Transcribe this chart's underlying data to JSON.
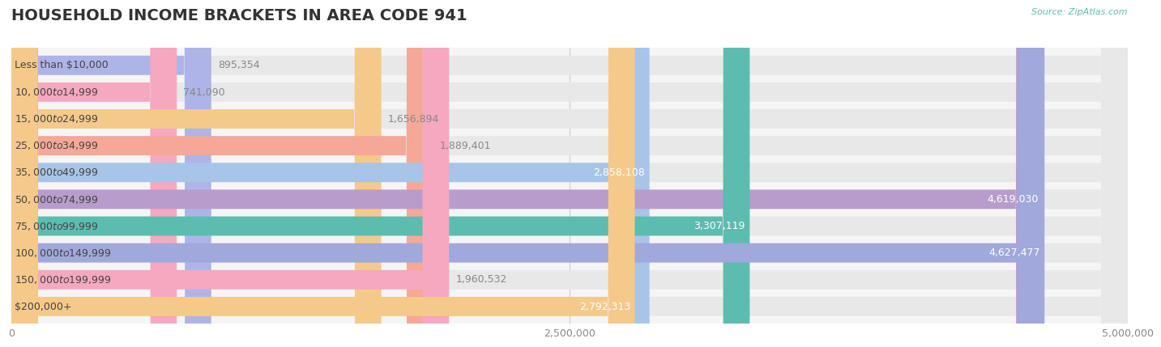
{
  "title": "HOUSEHOLD INCOME BRACKETS IN AREA CODE 941",
  "source": "Source: ZipAtlas.com",
  "categories": [
    "Less than $10,000",
    "$10,000 to $14,999",
    "$15,000 to $24,999",
    "$25,000 to $34,999",
    "$35,000 to $49,999",
    "$50,000 to $74,999",
    "$75,000 to $99,999",
    "$100,000 to $149,999",
    "$150,000 to $199,999",
    "$200,000+"
  ],
  "values": [
    895354,
    741090,
    1656894,
    1889401,
    2858108,
    4619030,
    3307119,
    4627477,
    1960532,
    2792313
  ],
  "bar_colors": [
    "#aeb4e8",
    "#f5a8c0",
    "#f5c98a",
    "#f5a898",
    "#a8c4e8",
    "#b89ccc",
    "#5dbcb0",
    "#a0a8dc",
    "#f5a8c0",
    "#f5c98a"
  ],
  "label_colors": [
    "#888888",
    "#888888",
    "#888888",
    "#888888",
    "#888888",
    "#ffffff",
    "#ffffff",
    "#ffffff",
    "#888888",
    "#888888"
  ],
  "xlim": [
    0,
    5000000
  ],
  "xticks": [
    0,
    2500000,
    5000000
  ],
  "xtick_labels": [
    "0",
    "2,500,000",
    "5,000,000"
  ],
  "bg_color": "#f5f5f5",
  "bar_bg_color": "#e8e8e8",
  "title_color": "#333333",
  "title_fontsize": 14,
  "label_fontsize": 9,
  "value_fontsize": 9,
  "source_fontsize": 8,
  "source_color": "#5dbcb0"
}
